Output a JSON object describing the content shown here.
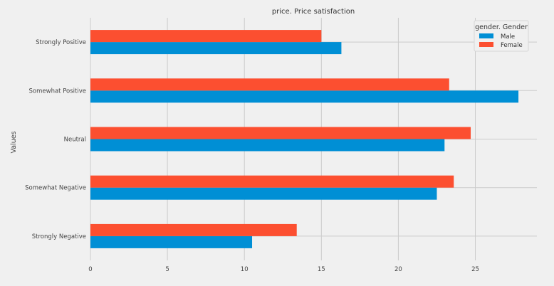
{
  "chart_data": {
    "type": "bar",
    "orientation": "horizontal",
    "title": "price. Price satisfaction",
    "xlabel": "",
    "ylabel": "Values",
    "categories": [
      "Strongly Negative",
      "Somewhat Negative",
      "Neutral",
      "Somewhat Positive",
      "Strongly Positive"
    ],
    "series": [
      {
        "name": "Male",
        "color": "#008fd5",
        "values": [
          10.5,
          22.5,
          23.0,
          27.8,
          16.3
        ]
      },
      {
        "name": "Female",
        "color": "#fc4f30",
        "values": [
          13.4,
          23.6,
          24.7,
          23.3,
          15.0
        ]
      }
    ],
    "xlim": [
      0,
      29
    ],
    "xticks": [
      0,
      5,
      10,
      15,
      20,
      25
    ],
    "grid": true,
    "legend": {
      "title": "gender. Gender",
      "position": "top-right"
    }
  }
}
